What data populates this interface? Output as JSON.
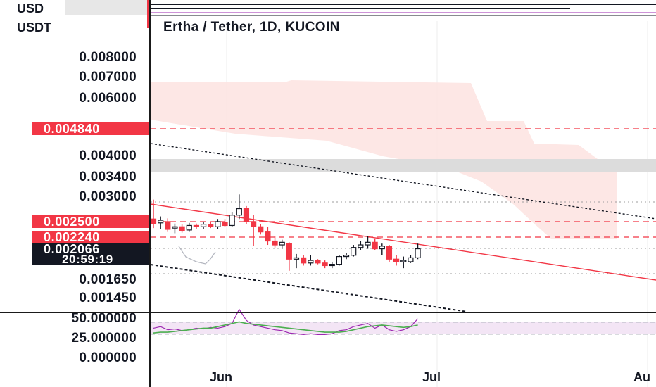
{
  "header": {
    "quote_currency_top": "USD",
    "quote_currency": "USDT",
    "chart_title": "Ertha / Tether, 1D, KUCOIN"
  },
  "price_axis": {
    "ticks": [
      "0.008000",
      "0.007000",
      "0.006000",
      "0.004000",
      "0.003400",
      "0.003000",
      "0.001650",
      "0.001450"
    ],
    "labels": {
      "resistance_high": "0.004840",
      "resistance_mid": "0.002500",
      "resistance_low": "0.002240",
      "current_price": "0.002066",
      "countdown": "20:59:19"
    }
  },
  "oscillator_axis": {
    "ticks": [
      "50.000000",
      "25.000000",
      "0.000000"
    ]
  },
  "time_axis": {
    "labels": [
      "Jun",
      "Jul",
      "Au"
    ]
  },
  "colors": {
    "down_candle": "#f23645",
    "up_candle": "#131722",
    "cloud": "#fde4e2",
    "grey_zone": "#dcdcdc",
    "signal": "#4caf50",
    "rsi": "#9c27b0"
  },
  "chart_data": {
    "type": "candlestick",
    "symbol": "Ertha / Tether",
    "interval": "1D",
    "exchange": "KUCOIN",
    "current_price": 0.002066,
    "horizontal_levels": [
      0.00484,
      0.0025,
      0.00224
    ],
    "candles": [
      {
        "o": 0.00252,
        "h": 0.00282,
        "l": 0.00238,
        "c": 0.00245
      },
      {
        "o": 0.00246,
        "h": 0.00256,
        "l": 0.00236,
        "c": 0.0025
      },
      {
        "o": 0.00248,
        "h": 0.00253,
        "l": 0.00232,
        "c": 0.00236
      },
      {
        "o": 0.00238,
        "h": 0.00245,
        "l": 0.0023,
        "c": 0.0024
      },
      {
        "o": 0.0024,
        "h": 0.00244,
        "l": 0.00231,
        "c": 0.00234
      },
      {
        "o": 0.00235,
        "h": 0.00246,
        "l": 0.00232,
        "c": 0.00242
      },
      {
        "o": 0.00242,
        "h": 0.00245,
        "l": 0.00237,
        "c": 0.0024
      },
      {
        "o": 0.0024,
        "h": 0.00248,
        "l": 0.00236,
        "c": 0.00244
      },
      {
        "o": 0.00244,
        "h": 0.00248,
        "l": 0.00238,
        "c": 0.0024
      },
      {
        "o": 0.0024,
        "h": 0.00252,
        "l": 0.00236,
        "c": 0.00248
      },
      {
        "o": 0.00247,
        "h": 0.00252,
        "l": 0.0024,
        "c": 0.00242
      },
      {
        "o": 0.00242,
        "h": 0.00262,
        "l": 0.0024,
        "c": 0.00258
      },
      {
        "o": 0.00258,
        "h": 0.0029,
        "l": 0.00252,
        "c": 0.00268
      },
      {
        "o": 0.00268,
        "h": 0.00272,
        "l": 0.00244,
        "c": 0.00248
      },
      {
        "o": 0.00248,
        "h": 0.00258,
        "l": 0.0021,
        "c": 0.0024
      },
      {
        "o": 0.0024,
        "h": 0.00244,
        "l": 0.00228,
        "c": 0.00232
      },
      {
        "o": 0.00232,
        "h": 0.0024,
        "l": 0.00212,
        "c": 0.00218
      },
      {
        "o": 0.00218,
        "h": 0.00226,
        "l": 0.00208,
        "c": 0.00212
      },
      {
        "o": 0.00212,
        "h": 0.0022,
        "l": 0.00206,
        "c": 0.00216
      },
      {
        "o": 0.00214,
        "h": 0.00216,
        "l": 0.00172,
        "c": 0.0019
      },
      {
        "o": 0.0019,
        "h": 0.00198,
        "l": 0.00176,
        "c": 0.00192
      },
      {
        "o": 0.00192,
        "h": 0.00196,
        "l": 0.0018,
        "c": 0.00184
      },
      {
        "o": 0.00184,
        "h": 0.00196,
        "l": 0.0018,
        "c": 0.00188
      },
      {
        "o": 0.00188,
        "h": 0.0019,
        "l": 0.00182,
        "c": 0.00184
      },
      {
        "o": 0.00184,
        "h": 0.00188,
        "l": 0.00176,
        "c": 0.0018
      },
      {
        "o": 0.0018,
        "h": 0.00186,
        "l": 0.00176,
        "c": 0.00182
      },
      {
        "o": 0.00182,
        "h": 0.00196,
        "l": 0.0018,
        "c": 0.00194
      },
      {
        "o": 0.00194,
        "h": 0.002,
        "l": 0.0019,
        "c": 0.00196
      },
      {
        "o": 0.00196,
        "h": 0.00212,
        "l": 0.00194,
        "c": 0.00208
      },
      {
        "o": 0.00208,
        "h": 0.00218,
        "l": 0.00204,
        "c": 0.00212
      },
      {
        "o": 0.00212,
        "h": 0.00226,
        "l": 0.00206,
        "c": 0.00216
      },
      {
        "o": 0.00216,
        "h": 0.00222,
        "l": 0.00204,
        "c": 0.00206
      },
      {
        "o": 0.00206,
        "h": 0.00214,
        "l": 0.00196,
        "c": 0.0021
      },
      {
        "o": 0.0021,
        "h": 0.00212,
        "l": 0.00186,
        "c": 0.0019
      },
      {
        "o": 0.0019,
        "h": 0.00196,
        "l": 0.0018,
        "c": 0.00186
      },
      {
        "o": 0.00186,
        "h": 0.00194,
        "l": 0.00176,
        "c": 0.00188
      },
      {
        "o": 0.00186,
        "h": 0.00196,
        "l": 0.00184,
        "c": 0.00192
      },
      {
        "o": 0.00192,
        "h": 0.00214,
        "l": 0.0019,
        "c": 0.00206
      }
    ],
    "oscillator": {
      "rsi": [
        38,
        40,
        36,
        37,
        35,
        36,
        38,
        37,
        39,
        38,
        40,
        44,
        62,
        48,
        42,
        40,
        38,
        36,
        35,
        32,
        31,
        30,
        31,
        30,
        30,
        31,
        35,
        36,
        40,
        42,
        44,
        38,
        42,
        36,
        34,
        36,
        40,
        50
      ],
      "signal": [
        32,
        33,
        33,
        34,
        35,
        36,
        37,
        38,
        38,
        40,
        42,
        44,
        46,
        44,
        43,
        42,
        41,
        40,
        39,
        38,
        37,
        36,
        35,
        34,
        33,
        33,
        33,
        34,
        36,
        38,
        40,
        41,
        42,
        41,
        40,
        39,
        40,
        42
      ],
      "band_upper": 45,
      "band_lower": 28,
      "ylim": [
        0,
        60
      ]
    }
  }
}
